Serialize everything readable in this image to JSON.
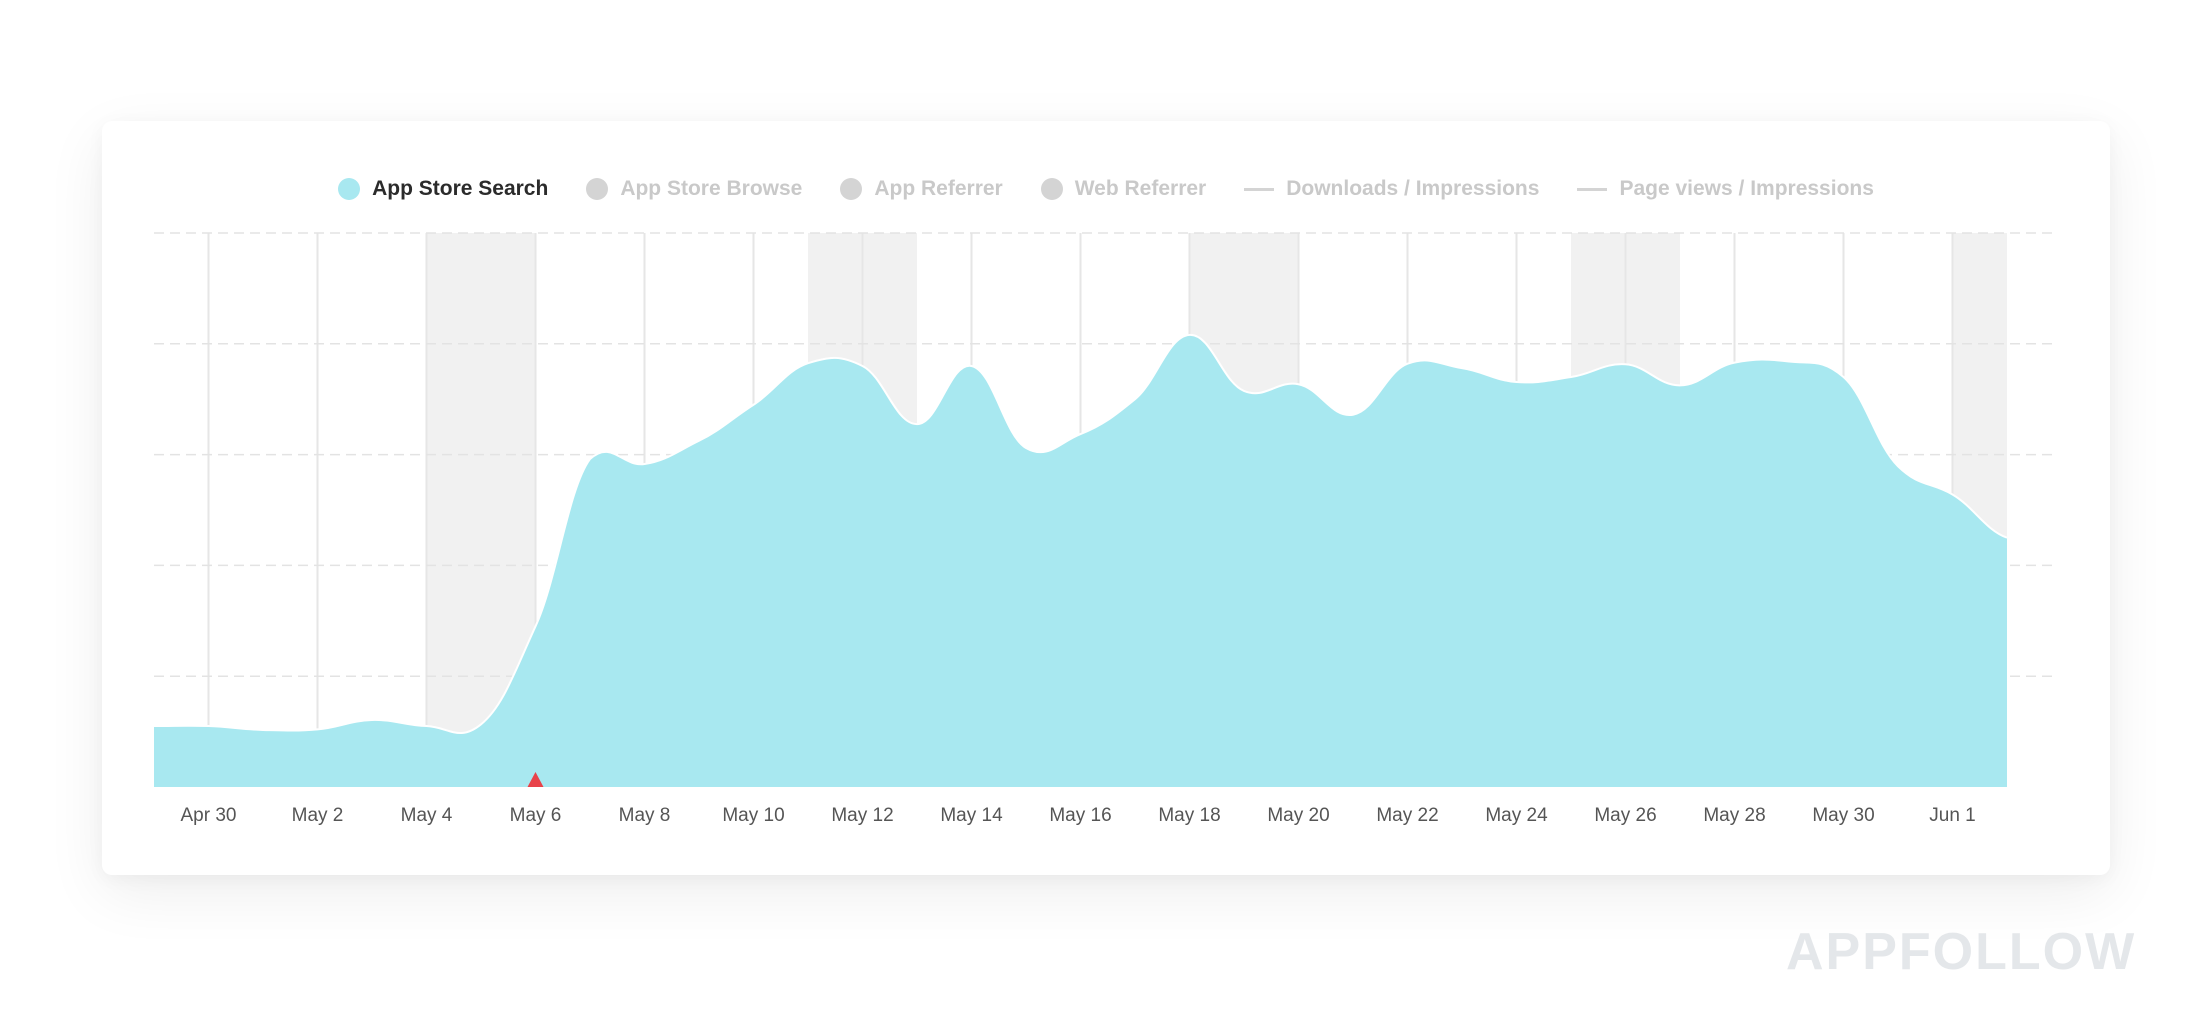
{
  "legend": {
    "items": [
      {
        "label": "App Store Search",
        "active": true
      },
      {
        "label": "App Store Browse",
        "active": false
      },
      {
        "label": "App Referrer",
        "active": false
      },
      {
        "label": "Web Referrer",
        "active": false
      },
      {
        "label": "Downloads / Impressions",
        "active": false
      },
      {
        "label": "Page views / Impressions",
        "active": false
      }
    ]
  },
  "brand": "APPFOLLOW",
  "colors": {
    "area": "#a8e8f0",
    "weekend": "#f1f1f1",
    "marker": "#e8434a"
  },
  "chart_data": {
    "type": "area",
    "series": [
      {
        "name": "App Store Search",
        "color": "#a8e8f0"
      }
    ],
    "x_ticks": [
      "Apr 30",
      "May 2",
      "May 4",
      "May 6",
      "May 8",
      "May 10",
      "May 12",
      "May 14",
      "May 16",
      "May 18",
      "May 20",
      "May 22",
      "May 24",
      "May 26",
      "May 28",
      "May 30",
      "Jun 1"
    ],
    "x": [
      "Apr 29",
      "Apr 30",
      "May 1",
      "May 2",
      "May 3",
      "May 4",
      "May 5",
      "May 6",
      "May 7",
      "May 8",
      "May 9",
      "May 10",
      "May 11",
      "May 12",
      "May 13",
      "May 14",
      "May 15",
      "May 16",
      "May 17",
      "May 18",
      "May 19",
      "May 20",
      "May 21",
      "May 22",
      "May 23",
      "May 24",
      "May 25",
      "May 26",
      "May 27",
      "May 28",
      "May 29",
      "May 30",
      "May 31",
      "Jun 1",
      "Jun 2"
    ],
    "values": [
      11,
      11,
      10.3,
      10.4,
      12.1,
      11,
      11.3,
      29,
      59.2,
      58.3,
      62.5,
      69,
      76.5,
      76,
      65.5,
      76,
      61.2,
      63.7,
      70,
      81.6,
      71.5,
      72.7,
      67.2,
      76.4,
      75.6,
      73.1,
      74,
      76.3,
      72.5,
      76.6,
      76.8,
      74,
      57.9,
      52.8,
      45
    ],
    "ylim": [
      0,
      100
    ],
    "y_gridlines": 5,
    "weekend_bands": [
      [
        "May 4",
        "May 6"
      ],
      [
        "May 11",
        "May 13"
      ],
      [
        "May 18",
        "May 20"
      ],
      [
        "May 25",
        "May 27"
      ],
      [
        "Jun 1",
        "Jun 2"
      ]
    ],
    "marker": "May 6",
    "grid": true
  }
}
